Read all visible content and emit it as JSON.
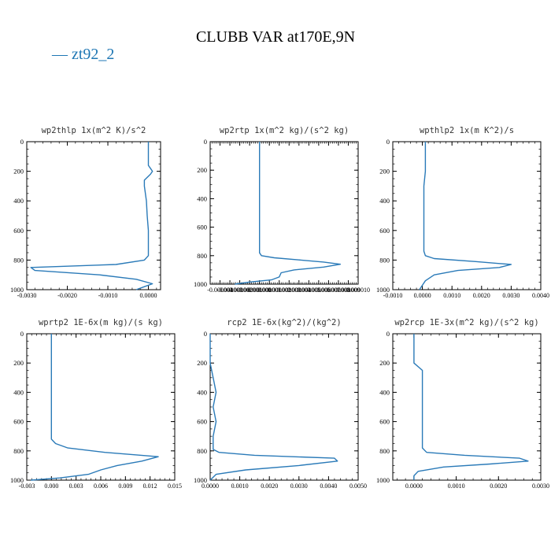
{
  "title": "CLUBB VAR at170E,9N",
  "legend": {
    "label": "— zt92_2",
    "color": "#2a7ab8"
  },
  "chart_data": [
    {
      "type": "line",
      "title": "wp2thlp   1x(m^2 K)/s^2",
      "xlim": [
        -0.003,
        0.0003
      ],
      "xticks": [
        -0.003,
        -0.002,
        -0.001,
        0.0
      ],
      "xtick_labels": [
        "-0.0030",
        "-0.0020",
        "-0.0010",
        "0.0000"
      ],
      "ylim": [
        1000,
        0
      ],
      "yticks": [
        0,
        200,
        400,
        600,
        800,
        1000
      ],
      "series": [
        {
          "x": [
            0.0,
            0.0,
            0.0,
            5e-05,
            0.0001,
            5e-05,
            -0.0001,
            -0.0001,
            -5e-05,
            -3e-05,
            0.0,
            0.0,
            -0.0001,
            -0.0008,
            -0.0029,
            -0.0028,
            -0.0012,
            -0.0003,
            0.0001,
            -0.0001,
            -0.0003
          ],
          "y": [
            0,
            100,
            160,
            180,
            200,
            220,
            260,
            300,
            400,
            500,
            600,
            770,
            800,
            830,
            850,
            870,
            900,
            930,
            960,
            980,
            1000
          ]
        }
      ]
    },
    {
      "type": "line",
      "title": "wp2rtp   1x(m^2 kg)/(s^2 kg)",
      "xlim": [
        -5e-06,
        1e-05
      ],
      "xticks": [
        -4e-06,
        -3e-06,
        -2e-06,
        -1e-06,
        0.0,
        1e-06,
        2e-06,
        3e-06,
        4e-06,
        5e-06,
        6e-06,
        7e-06,
        8e-06,
        9e-06,
        1e-05
      ],
      "xtick_labels": [
        "-0.000004",
        "-0.000003",
        "-0.000002",
        "-0.000001",
        "0.000000",
        "0.000001",
        "0.000002",
        "0.000003",
        "0.000004",
        "0.000005",
        "0.000006",
        "0.000007",
        "0.000008",
        "0.000009",
        "0.000010"
      ],
      "ylim": [
        1000,
        0
      ],
      "yticks": [
        0,
        200,
        400,
        600,
        800,
        1000
      ],
      "series": [
        {
          "x": [
            0.0,
            0.0,
            0.0,
            0.0,
            0.0,
            0.0,
            2e-07,
            1.5e-06,
            4e-06,
            6.5e-06,
            8.2e-06,
            6.5e-06,
            3.5e-06,
            2.2e-06,
            2e-06,
            1.2e-06,
            -1e-06,
            -2.5e-06
          ],
          "y": [
            0,
            200,
            400,
            600,
            700,
            780,
            800,
            815,
            830,
            845,
            860,
            880,
            900,
            920,
            950,
            970,
            985,
            1000
          ]
        }
      ]
    },
    {
      "type": "line",
      "title": "wpthlp2   1x(m K^2)/s",
      "xlim": [
        -0.001,
        0.004
      ],
      "xticks": [
        -0.001,
        0.0,
        0.001,
        0.002,
        0.003,
        0.004
      ],
      "xtick_labels": [
        "-0.0010",
        "0.0000",
        "0.0010",
        "0.0020",
        "0.0030",
        "0.0040"
      ],
      "ylim": [
        1000,
        0
      ],
      "yticks": [
        0,
        200,
        400,
        600,
        800,
        1000
      ],
      "series": [
        {
          "x": [
            0.0001,
            0.0001,
            5e-05,
            5e-05,
            5e-05,
            5e-05,
            0.0001,
            0.0004,
            0.0018,
            0.003,
            0.0026,
            0.0012,
            0.0004,
            0.0001,
            0.0,
            -0.0001
          ],
          "y": [
            0,
            200,
            300,
            500,
            700,
            740,
            770,
            790,
            810,
            830,
            850,
            870,
            900,
            940,
            970,
            1000
          ]
        }
      ]
    },
    {
      "type": "line",
      "title": "wprtp2   1E-6x(m kg)/(s kg)",
      "xlim": [
        -0.003,
        0.015
      ],
      "xticks": [
        -0.003,
        0.0,
        0.003,
        0.006,
        0.009,
        0.012,
        0.015
      ],
      "xtick_labels": [
        "-0.003",
        "0.000",
        "0.003",
        "0.006",
        "0.009",
        "0.012",
        "0.015"
      ],
      "ylim": [
        1000,
        0
      ],
      "yticks": [
        0,
        200,
        400,
        600,
        800,
        1000
      ],
      "series": [
        {
          "x": [
            0.0,
            0.0,
            0.0,
            0.0,
            0.0005,
            0.002,
            0.0065,
            0.013,
            0.011,
            0.008,
            0.006,
            0.0045,
            0.001,
            -0.0025
          ],
          "y": [
            0,
            200,
            400,
            720,
            750,
            780,
            810,
            840,
            870,
            900,
            930,
            960,
            985,
            1000
          ]
        }
      ]
    },
    {
      "type": "line",
      "title": "rcp2   1E-6x(kg^2)/(kg^2)",
      "xlim": [
        0.0,
        0.005
      ],
      "xticks": [
        0.0,
        0.001,
        0.002,
        0.003,
        0.004,
        0.005
      ],
      "xtick_labels": [
        "0.0000",
        "0.0010",
        "0.0020",
        "0.0030",
        "0.0040",
        "0.0050"
      ],
      "ylim": [
        1000,
        0
      ],
      "yticks": [
        0,
        200,
        400,
        600,
        800,
        1000
      ],
      "series": [
        {
          "x": [
            0.0,
            0.0,
            0.0001,
            0.0002,
            0.0001,
            0.0002,
            0.0001,
            0.0001,
            0.0003,
            0.0015,
            0.0042,
            0.0043,
            0.003,
            0.0012,
            0.0002,
            0.0
          ],
          "y": [
            0,
            200,
            300,
            400,
            500,
            600,
            700,
            790,
            810,
            830,
            850,
            870,
            900,
            930,
            960,
            1000
          ]
        }
      ]
    },
    {
      "type": "line",
      "title": "wp2rcp   1E-3x(m^2 kg)/(s^2 kg)",
      "xlim": [
        -0.0005,
        0.003
      ],
      "xticks": [
        0.0,
        0.001,
        0.002,
        0.003
      ],
      "xtick_labels": [
        "0.0000",
        "0.0010",
        "0.0020",
        "0.0030"
      ],
      "ylim": [
        1000,
        0
      ],
      "yticks": [
        0,
        200,
        400,
        600,
        800,
        1000
      ],
      "series": [
        {
          "x": [
            0.0,
            0.0,
            0.0002,
            0.0002,
            0.0002,
            0.0002,
            0.0002,
            0.0002,
            0.0003,
            0.0012,
            0.0025,
            0.0027,
            0.0018,
            0.0007,
            0.0001,
            0.0,
            0.0
          ],
          "y": [
            0,
            200,
            250,
            300,
            400,
            500,
            600,
            780,
            810,
            830,
            850,
            870,
            890,
            910,
            940,
            970,
            1000
          ]
        }
      ]
    }
  ]
}
